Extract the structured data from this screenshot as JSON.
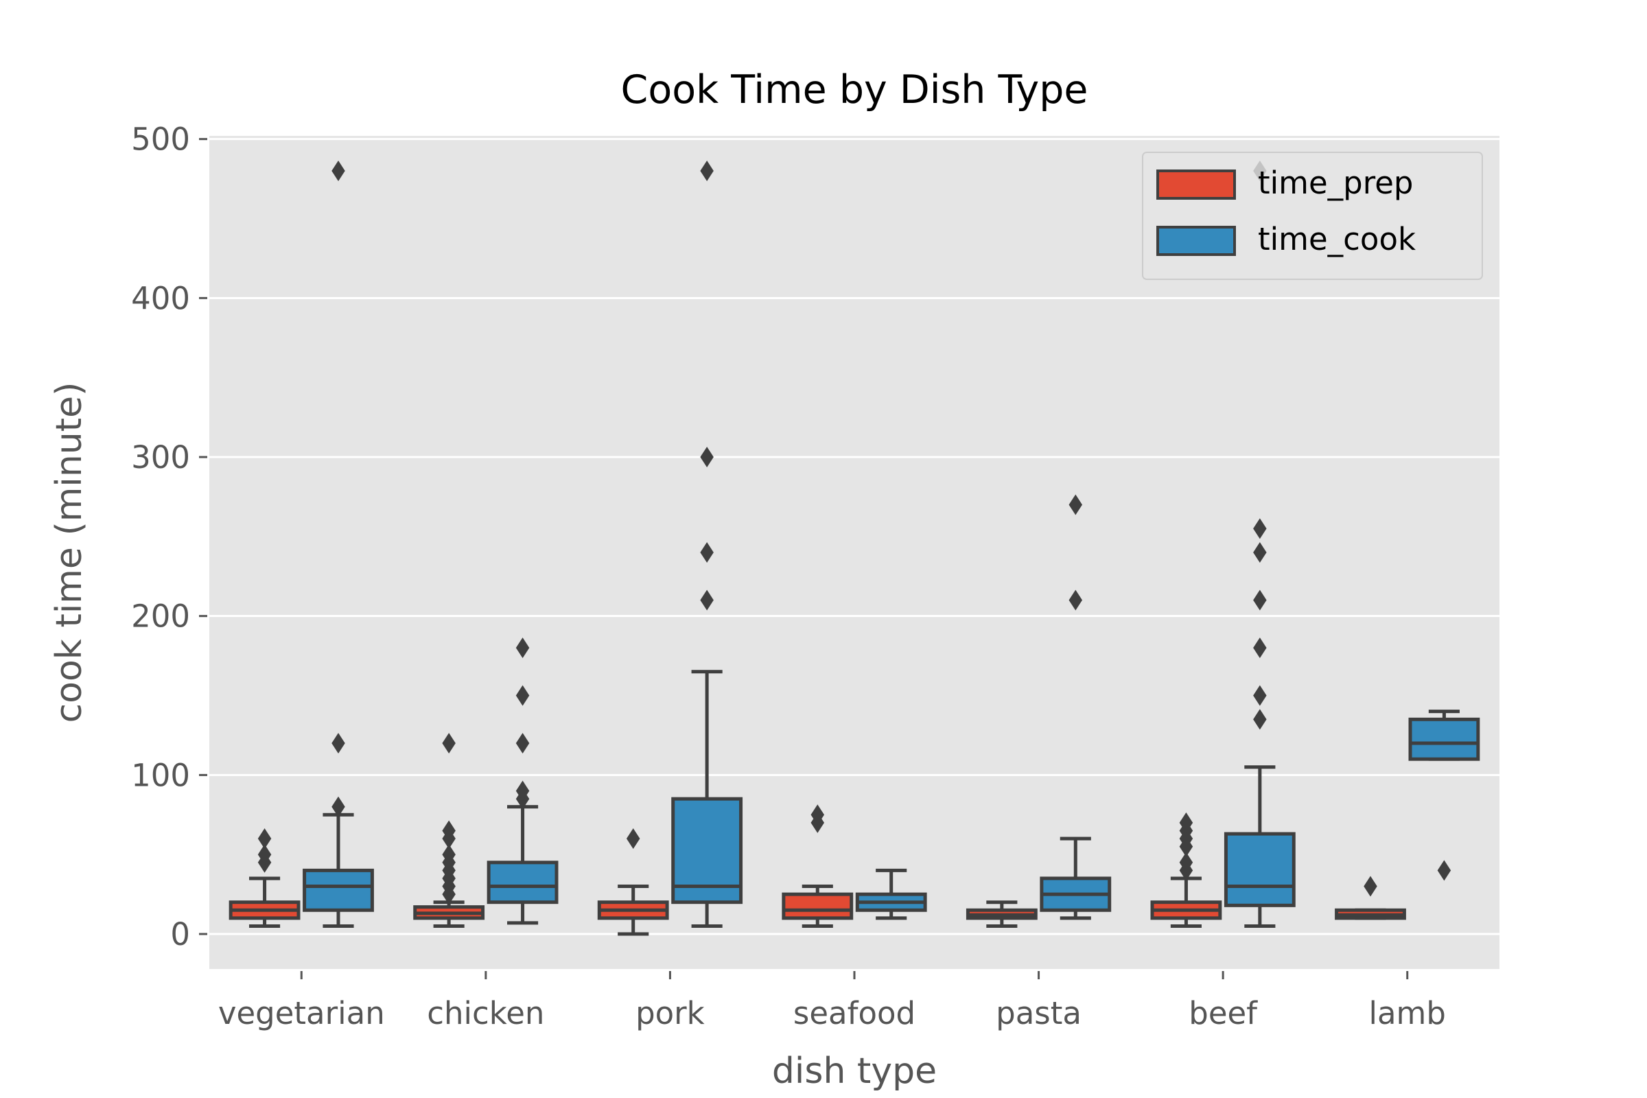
{
  "chart_data": {
    "type": "box",
    "title": "Cook Time by Dish Type",
    "xlabel": "dish type",
    "ylabel": "cook time (minute)",
    "ylim": [
      -22,
      502
    ],
    "yticks": [
      0,
      100,
      200,
      300,
      400,
      500
    ],
    "grid": true,
    "legend_position": "top-right",
    "categories": [
      "vegetarian",
      "chicken",
      "pork",
      "seafood",
      "pasta",
      "beef",
      "lamb"
    ],
    "series": [
      {
        "name": "time_prep",
        "color": "#E24A33",
        "boxes": [
          {
            "whisker_low": 5,
            "q1": 10,
            "median": 15,
            "q3": 20,
            "whisker_high": 35,
            "outliers": [
              45,
              50,
              60
            ]
          },
          {
            "whisker_low": 5,
            "q1": 10,
            "median": 13,
            "q3": 17,
            "whisker_high": 20,
            "outliers": [
              25,
              30,
              35,
              40,
              45,
              50,
              60,
              65,
              120
            ]
          },
          {
            "whisker_low": 0,
            "q1": 10,
            "median": 15,
            "q3": 20,
            "whisker_high": 30,
            "outliers": [
              60
            ]
          },
          {
            "whisker_low": 5,
            "q1": 10,
            "median": 15,
            "q3": 25,
            "whisker_high": 30,
            "outliers": [
              70,
              75
            ]
          },
          {
            "whisker_low": 5,
            "q1": 10,
            "median": 12,
            "q3": 15,
            "whisker_high": 20,
            "outliers": []
          },
          {
            "whisker_low": 5,
            "q1": 10,
            "median": 15,
            "q3": 20,
            "whisker_high": 35,
            "outliers": [
              40,
              45,
              55,
              60,
              65,
              70
            ]
          },
          {
            "whisker_low": 10,
            "q1": 10,
            "median": 12,
            "q3": 15,
            "whisker_high": 15,
            "outliers": [
              30
            ]
          }
        ]
      },
      {
        "name": "time_cook",
        "color": "#348ABD",
        "boxes": [
          {
            "whisker_low": 5,
            "q1": 15,
            "median": 30,
            "q3": 40,
            "whisker_high": 75,
            "outliers": [
              80,
              120,
              480
            ]
          },
          {
            "whisker_low": 7,
            "q1": 20,
            "median": 30,
            "q3": 45,
            "whisker_high": 80,
            "outliers": [
              85,
              90,
              120,
              150,
              180
            ]
          },
          {
            "whisker_low": 5,
            "q1": 20,
            "median": 30,
            "q3": 85,
            "whisker_high": 165,
            "outliers": [
              210,
              240,
              300,
              480
            ]
          },
          {
            "whisker_low": 10,
            "q1": 15,
            "median": 20,
            "q3": 25,
            "whisker_high": 40,
            "outliers": []
          },
          {
            "whisker_low": 10,
            "q1": 15,
            "median": 25,
            "q3": 35,
            "whisker_high": 60,
            "outliers": [
              210,
              270
            ]
          },
          {
            "whisker_low": 5,
            "q1": 18,
            "median": 30,
            "q3": 63,
            "whisker_high": 105,
            "outliers": [
              135,
              150,
              180,
              210,
              240,
              255,
              480
            ]
          },
          {
            "whisker_low": 110,
            "q1": 110,
            "median": 120,
            "q3": 135,
            "whisker_high": 140,
            "outliers": [
              40
            ]
          }
        ]
      }
    ]
  }
}
